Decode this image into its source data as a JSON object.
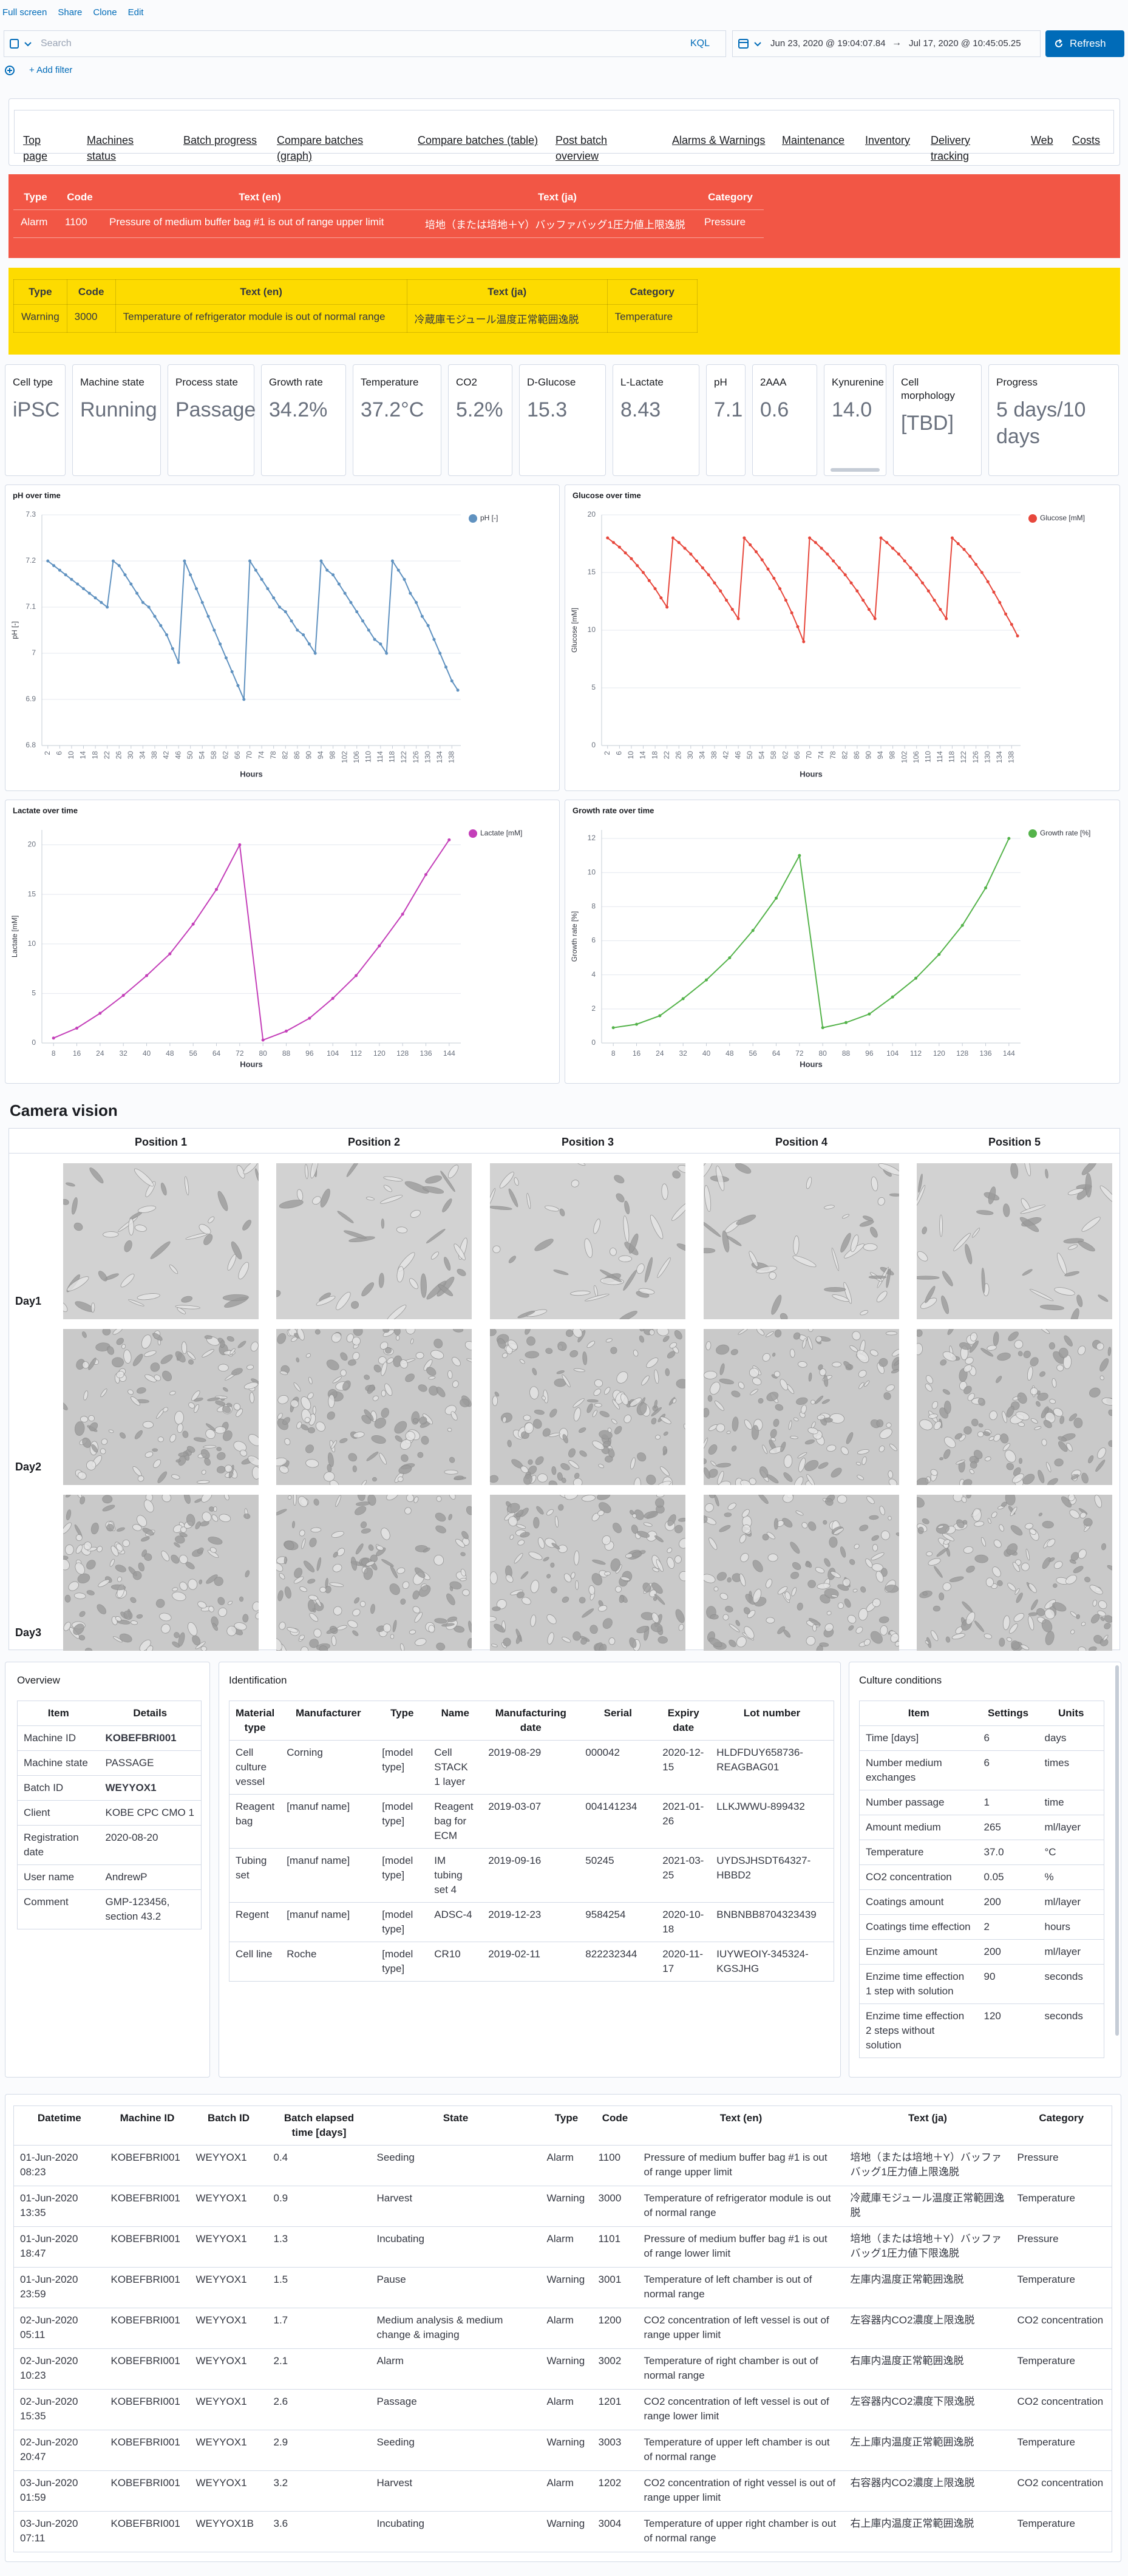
{
  "toolbar": {
    "links": [
      "Full screen",
      "Share",
      "Clone",
      "Edit"
    ],
    "search_placeholder": "Search",
    "query_language": "KQL",
    "date_start": "Jun 23, 2020 @ 19:04:07.84",
    "date_arrow": "→",
    "date_end": "Jul 17, 2020 @ 10:45:05.25",
    "refresh": "Refresh",
    "add_filter": "+ Add filter"
  },
  "nav": [
    "Top page",
    "Machines status",
    "Batch progress",
    "Compare batches (graph)",
    "Compare batches (table)",
    "Post batch overview",
    "Alarms & Warnings",
    "Maintenance",
    "Inventory",
    "Delivery tracking",
    "Web",
    "Costs"
  ],
  "alarm_panel": {
    "columns": [
      "Type",
      "Code",
      "Text (en)",
      "Text (ja)",
      "Category"
    ],
    "rows": [
      [
        "Alarm",
        "1100",
        "Pressure of medium buffer bag #1 is out of range upper limit",
        "培地（または培地＋Y）バッファバッグ1圧力値上限逸脱",
        "Pressure"
      ]
    ]
  },
  "warning_panel": {
    "columns": [
      "Type",
      "Code",
      "Text (en)",
      "Text (ja)",
      "Category"
    ],
    "rows": [
      [
        "Warning",
        "3000",
        "Temperature of refrigerator module is out of normal range",
        "冷蔵庫モジュール温度正常範囲逸脱",
        "Temperature"
      ]
    ]
  },
  "metrics": [
    {
      "label": "Cell type",
      "value": "iPSC"
    },
    {
      "label": "Machine state",
      "value": "Running"
    },
    {
      "label": "Process state",
      "value": "Passage"
    },
    {
      "label": "Growth rate",
      "value": "34.2%"
    },
    {
      "label": "Temperature",
      "value": "37.2°C"
    },
    {
      "label": "CO2",
      "value": "5.2%"
    },
    {
      "label": "D-Glucose",
      "value": "15.3"
    },
    {
      "label": "L-Lactate",
      "value": "8.43"
    },
    {
      "label": "pH",
      "value": "7.1"
    },
    {
      "label": "2AAA",
      "value": "0.6"
    },
    {
      "label": "Kynurenine",
      "value": "14.0"
    },
    {
      "label": "Cell morphology",
      "value": "[TBD]"
    },
    {
      "label": "Progress",
      "value": "5 days/10 days"
    }
  ],
  "chart_data": [
    {
      "type": "line",
      "title": "pH over time",
      "x_label": "Hours",
      "y_label": "pH [-]",
      "grid": true,
      "legend": "top-right",
      "x": [
        2,
        4,
        6,
        8,
        10,
        12,
        14,
        16,
        18,
        20,
        22,
        24,
        26,
        28,
        30,
        32,
        34,
        36,
        38,
        40,
        42,
        44,
        46,
        48,
        50,
        52,
        54,
        56,
        58,
        60,
        62,
        64,
        66,
        68,
        70,
        72,
        74,
        76,
        78,
        80,
        82,
        84,
        86,
        88,
        90,
        92,
        94,
        96,
        98,
        100,
        102,
        104,
        106,
        108,
        110,
        112,
        114,
        116,
        118,
        120,
        122,
        124,
        126,
        128,
        130,
        132,
        134,
        136,
        138,
        140
      ],
      "series": [
        {
          "name": "pH [-]",
          "color": "#6092c0",
          "values": [
            7.2,
            7.19,
            7.18,
            7.17,
            7.16,
            7.15,
            7.14,
            7.13,
            7.12,
            7.11,
            7.1,
            7.2,
            7.19,
            7.17,
            7.15,
            7.13,
            7.11,
            7.1,
            7.08,
            7.06,
            7.04,
            7.01,
            6.98,
            7.2,
            7.17,
            7.14,
            7.11,
            7.08,
            7.05,
            7.02,
            6.99,
            6.96,
            6.93,
            6.9,
            7.2,
            7.18,
            7.16,
            7.14,
            7.12,
            7.1,
            7.09,
            7.07,
            7.05,
            7.04,
            7.02,
            7,
            7.2,
            7.18,
            7.17,
            7.15,
            7.13,
            7.11,
            7.09,
            7.07,
            7.05,
            7.03,
            7.02,
            7,
            7.2,
            7.18,
            7.16,
            7.13,
            7.11,
            7.08,
            7.06,
            7.03,
            7,
            6.97,
            6.94,
            6.92
          ]
        }
      ],
      "xlim": [
        0,
        141
      ],
      "xticks": [
        2,
        6,
        10,
        14,
        18,
        22,
        26,
        30,
        34,
        38,
        42,
        46,
        50,
        54,
        58,
        62,
        66,
        70,
        74,
        78,
        82,
        86,
        90,
        94,
        98,
        102,
        106,
        110,
        114,
        118,
        122,
        126,
        130,
        134,
        138
      ],
      "ylim": [
        6.8,
        7.3
      ],
      "yticks": [
        6.8,
        6.9,
        7,
        7.1,
        7.2,
        7.3
      ]
    },
    {
      "type": "line",
      "title": "Glucose over time",
      "x_label": "Hours",
      "y_label": "Glucose [mM]",
      "grid": true,
      "legend": "top-right",
      "x": [
        2,
        4,
        6,
        8,
        10,
        12,
        14,
        16,
        18,
        20,
        22,
        24,
        26,
        28,
        30,
        32,
        34,
        36,
        38,
        40,
        42,
        44,
        46,
        48,
        50,
        52,
        54,
        56,
        58,
        60,
        62,
        64,
        66,
        68,
        70,
        72,
        74,
        76,
        78,
        80,
        82,
        84,
        86,
        88,
        90,
        92,
        94,
        96,
        98,
        100,
        102,
        104,
        106,
        108,
        110,
        112,
        114,
        116,
        118,
        120,
        122,
        124,
        126,
        128,
        130,
        132,
        134,
        136,
        138,
        140
      ],
      "series": [
        {
          "name": "Glucose [mM]",
          "color": "#e7473c",
          "values": [
            18,
            17.6,
            17.2,
            16.7,
            16.2,
            15.6,
            15,
            14.3,
            13.6,
            12.8,
            12,
            18,
            17.6,
            17.1,
            16.6,
            16,
            15.4,
            14.8,
            14.1,
            13.4,
            12.6,
            11.8,
            11,
            18,
            17.4,
            16.8,
            16.1,
            15.3,
            14.5,
            13.6,
            12.6,
            11.5,
            10.3,
            9,
            18,
            17.6,
            17.1,
            16.6,
            16,
            15.4,
            14.8,
            14.1,
            13.4,
            12.6,
            11.8,
            11,
            18,
            17.6,
            17.1,
            16.6,
            16,
            15.4,
            14.8,
            14.1,
            13.4,
            12.6,
            11.8,
            11,
            18,
            17.5,
            17,
            16.4,
            15.7,
            15,
            14.2,
            13.3,
            12.4,
            11.4,
            10.5,
            9.5
          ]
        }
      ],
      "xlim": [
        0,
        141
      ],
      "xticks": [
        2,
        6,
        10,
        14,
        18,
        22,
        26,
        30,
        34,
        38,
        42,
        46,
        50,
        54,
        58,
        62,
        66,
        70,
        74,
        78,
        82,
        86,
        90,
        94,
        98,
        102,
        106,
        110,
        114,
        118,
        122,
        126,
        130,
        134,
        138
      ],
      "ylim": [
        0,
        20
      ],
      "yticks": [
        0,
        5,
        10,
        15,
        20
      ]
    },
    {
      "type": "line",
      "title": "Lactate over time",
      "x_label": "Hours",
      "y_label": "Lactate [mM]",
      "grid": true,
      "legend": "top-right",
      "x": [
        8,
        16,
        24,
        32,
        40,
        48,
        56,
        64,
        72,
        80,
        88,
        96,
        104,
        112,
        120,
        128,
        136,
        144
      ],
      "series": [
        {
          "name": "Lactate [mM]",
          "color": "#c43fb9",
          "values": [
            0.5,
            1.5,
            3,
            4.8,
            6.8,
            9,
            12,
            15.5,
            20,
            0.3,
            1.2,
            2.5,
            4.5,
            6.8,
            9.8,
            13,
            17,
            20.5
          ]
        }
      ],
      "xlim": [
        4,
        148
      ],
      "xticks": [
        8,
        16,
        24,
        32,
        40,
        48,
        56,
        64,
        72,
        80,
        88,
        96,
        104,
        112,
        120,
        128,
        136,
        144
      ],
      "ylim": [
        0,
        21.5
      ],
      "yticks": [
        0,
        5,
        10,
        15,
        20
      ]
    },
    {
      "type": "line",
      "title": "Growth rate over time",
      "x_label": "Hours",
      "y_label": "Growth rate [%]",
      "grid": true,
      "legend": "top-right",
      "x": [
        8,
        16,
        24,
        32,
        40,
        48,
        56,
        64,
        72,
        80,
        88,
        96,
        104,
        112,
        120,
        128,
        136,
        144
      ],
      "series": [
        {
          "name": "Growth rate [%]",
          "color": "#54b34a",
          "values": [
            0.9,
            1.1,
            1.6,
            2.6,
            3.7,
            5,
            6.6,
            8.5,
            11,
            0.9,
            1.2,
            1.7,
            2.7,
            3.8,
            5.2,
            6.9,
            9.1,
            12
          ]
        }
      ],
      "xlim": [
        4,
        148
      ],
      "xticks": [
        8,
        16,
        24,
        32,
        40,
        48,
        56,
        64,
        72,
        80,
        88,
        96,
        104,
        112,
        120,
        128,
        136,
        144
      ],
      "ylim": [
        0,
        12.5
      ],
      "yticks": [
        0,
        2,
        4,
        6,
        8,
        10,
        12
      ]
    }
  ],
  "camera": {
    "title": "Camera vision",
    "columns": [
      "Position 1",
      "Position 2",
      "Position 3",
      "Position 4",
      "Position 5"
    ],
    "rows": [
      "Day1",
      "Day2",
      "Day3"
    ]
  },
  "overview": {
    "title": "Overview",
    "columns": [
      "Item",
      "Details"
    ],
    "rows": [
      [
        "Machine ID",
        "KOBEFBRI001"
      ],
      [
        "Machine state",
        "PASSAGE"
      ],
      [
        "Batch ID",
        "WEYYOX1"
      ],
      [
        "Client",
        "KOBE CPC CMO 1"
      ],
      [
        "Registration date",
        "2020-08-20"
      ],
      [
        "User name",
        "AndrewP"
      ],
      [
        "Comment",
        "GMP-123456, section 43.2"
      ]
    ]
  },
  "identification": {
    "title": "Identification",
    "columns": [
      "Material type",
      "Manufacturer",
      "Type",
      "Name",
      "Manufacturing date",
      "Serial",
      "Expiry date",
      "Lot number"
    ],
    "rows": [
      [
        "Cell culture vessel",
        "Corning",
        "[model type]",
        "Cell STACK 1 layer",
        "2019-08-29",
        "000042",
        "2020-12-15",
        "HLDFDUY658736-REAGBAG01"
      ],
      [
        "Reagent bag",
        "[manuf name]",
        "[model type]",
        "Reagent bag for ECM",
        "2019-03-07",
        "004141234",
        "2021-01-26",
        "LLKJWWU-899432"
      ],
      [
        "Tubing set",
        "[manuf name]",
        "[model type]",
        "IM tubing set 4",
        "2019-09-16",
        "50245",
        "2021-03-25",
        "UYDSJHSDT64327-HBBD2"
      ],
      [
        "Regent",
        "[manuf name]",
        "[model type]",
        "ADSC-4",
        "2019-12-23",
        "9584254",
        "2020-10-18",
        "BNBNBB8704323439"
      ],
      [
        "Cell line",
        "Roche",
        "[model type]",
        "CR10",
        "2019-02-11",
        "822232344",
        "2020-11-17",
        "IUYWEOIY-345324-KGSJHG"
      ]
    ]
  },
  "culture_conditions": {
    "title": "Culture conditions",
    "columns": [
      "Item",
      "Settings",
      "Units"
    ],
    "rows": [
      [
        "Time [days]",
        "6",
        "days"
      ],
      [
        "Number medium exchanges",
        "6",
        "times"
      ],
      [
        "Number passage",
        "1",
        "time"
      ],
      [
        "Amount medium",
        "265",
        "ml/layer"
      ],
      [
        "Temperature",
        "37.0",
        "°C"
      ],
      [
        "CO2 concentration",
        "0.05",
        "%"
      ],
      [
        "Coatings amount",
        "200",
        "ml/layer"
      ],
      [
        "Coatings time effection",
        "2",
        "hours"
      ],
      [
        "Enzime amount",
        "200",
        "ml/layer"
      ],
      [
        "Enzime time effection 1 step with solution",
        "90",
        "seconds"
      ],
      [
        "Enzime time effection 2 steps without solution",
        "120",
        "seconds"
      ]
    ]
  },
  "events": {
    "columns": [
      "Datetime",
      "Machine ID",
      "Batch ID",
      "Batch elapsed time [days]",
      "State",
      "Type",
      "Code",
      "Text (en)",
      "Text (ja)",
      "Category"
    ],
    "rows": [
      [
        "01-Jun-2020 08:23",
        "KOBEFBRI001",
        "WEYYOX1",
        "0.4",
        "Seeding",
        "Alarm",
        "1100",
        "Pressure of medium buffer bag #1 is out of range upper limit",
        "培地（または培地＋Y）バッファバッグ1圧力値上限逸脱",
        "Pressure"
      ],
      [
        "01-Jun-2020 13:35",
        "KOBEFBRI001",
        "WEYYOX1",
        "0.9",
        "Harvest",
        "Warning",
        "3000",
        "Temperature of refrigerator module is out of normal range",
        "冷蔵庫モジュール温度正常範囲逸脱",
        "Temperature"
      ],
      [
        "01-Jun-2020 18:47",
        "KOBEFBRI001",
        "WEYYOX1",
        "1.3",
        "Incubating",
        "Alarm",
        "1101",
        "Pressure of medium buffer bag #1 is out of range lower limit",
        "培地（または培地＋Y）バッファバッグ1圧力値下限逸脱",
        "Pressure"
      ],
      [
        "01-Jun-2020 23:59",
        "KOBEFBRI001",
        "WEYYOX1",
        "1.5",
        "Pause",
        "Warning",
        "3001",
        "Temperature of left chamber is out of normal range",
        "左庫内温度正常範囲逸脱",
        "Temperature"
      ],
      [
        "02-Jun-2020 05:11",
        "KOBEFBRI001",
        "WEYYOX1",
        "1.7",
        "Medium analysis & medium change & imaging",
        "Alarm",
        "1200",
        "CO2 concentration of left vessel is out of range upper limit",
        "左容器内CO2濃度上限逸脱",
        "CO2 concentration"
      ],
      [
        "02-Jun-2020 10:23",
        "KOBEFBRI001",
        "WEYYOX1",
        "2.1",
        "Alarm",
        "Warning",
        "3002",
        "Temperature of right chamber is out of normal range",
        "右庫内温度正常範囲逸脱",
        "Temperature"
      ],
      [
        "02-Jun-2020 15:35",
        "KOBEFBRI001",
        "WEYYOX1",
        "2.6",
        "Passage",
        "Alarm",
        "1201",
        "CO2 concentration of left vessel is out of range lower limit",
        "左容器内CO2濃度下限逸脱",
        "CO2 concentration"
      ],
      [
        "02-Jun-2020 20:47",
        "KOBEFBRI001",
        "WEYYOX1",
        "2.9",
        "Seeding",
        "Warning",
        "3003",
        "Temperature of upper left chamber is out of normal range",
        "左上庫内温度正常範囲逸脱",
        "Temperature"
      ],
      [
        "03-Jun-2020 01:59",
        "KOBEFBRI001",
        "WEYYOX1",
        "3.2",
        "Harvest",
        "Alarm",
        "1202",
        "CO2 concentration of right vessel is out of range upper limit",
        "右容器内CO2濃度上限逸脱",
        "CO2 concentration"
      ],
      [
        "03-Jun-2020 07:11",
        "KOBEFBRI001",
        "WEYYOX1B",
        "3.6",
        "Incubating",
        "Warning",
        "3004",
        "Temperature of upper right chamber is out of normal range",
        "右上庫内温度正常範囲逸脱",
        "Temperature"
      ]
    ]
  }
}
